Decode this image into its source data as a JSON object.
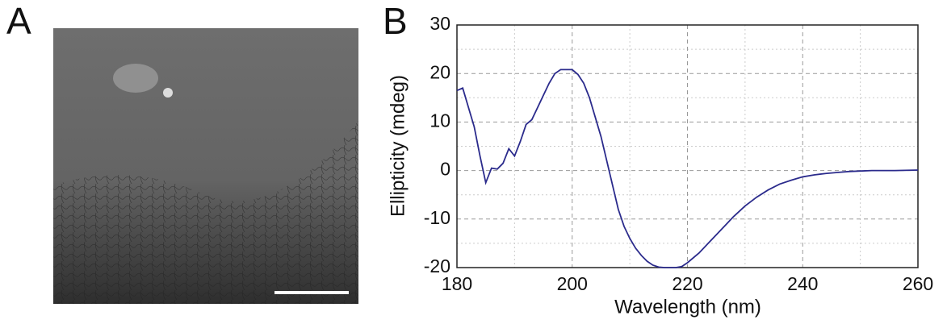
{
  "panels": [
    "A",
    "B"
  ],
  "chart_data": {
    "type": "line",
    "xlabel": "Wavelength (nm)",
    "ylabel": "Ellipticity (mdeg)",
    "xlim": [
      180,
      260
    ],
    "xticks": [
      180,
      200,
      220,
      240,
      260
    ],
    "ylim": [
      -20,
      30
    ],
    "yticks": [
      -20,
      -10,
      0,
      10,
      20,
      30
    ],
    "grid": true,
    "series": [
      {
        "color": "#2b2b8c",
        "x": [
          180,
          181,
          182,
          183,
          184,
          185,
          186,
          187,
          188,
          189,
          190,
          191,
          192,
          193,
          194,
          195,
          196,
          197,
          198,
          199,
          200,
          201,
          202,
          203,
          204,
          205,
          206,
          207,
          208,
          209,
          210,
          211,
          212,
          213,
          214,
          215,
          216,
          217,
          218,
          219,
          220,
          222,
          224,
          226,
          228,
          230,
          232,
          234,
          236,
          238,
          240,
          242,
          244,
          246,
          248,
          250,
          252,
          256,
          260
        ],
        "values": [
          16.5,
          17,
          13,
          9,
          3,
          -2.5,
          0.5,
          0.3,
          1.5,
          4.5,
          3,
          6,
          9.5,
          10.5,
          13,
          15.5,
          18,
          20,
          20.8,
          20.8,
          20.8,
          19.8,
          18,
          15,
          11,
          7,
          2,
          -3,
          -8,
          -11.5,
          -14,
          -16,
          -17.5,
          -18.7,
          -19.5,
          -19.9,
          -20,
          -20,
          -20,
          -19.8,
          -19,
          -17,
          -14.5,
          -12,
          -9.5,
          -7.3,
          -5.5,
          -4,
          -2.8,
          -2,
          -1.3,
          -0.9,
          -0.6,
          -0.4,
          -0.2,
          -0.1,
          0,
          0,
          0.1
        ]
      }
    ]
  }
}
